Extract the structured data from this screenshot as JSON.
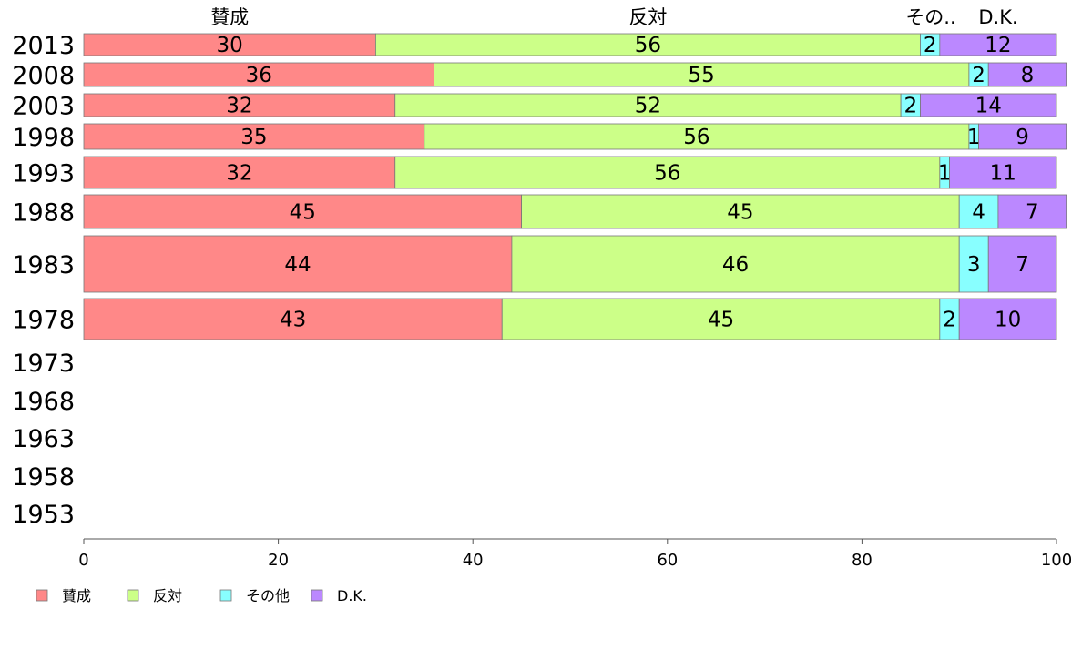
{
  "chart_data": {
    "type": "bar",
    "orientation": "horizontal",
    "stacked": true,
    "categories": [
      "2013",
      "2008",
      "2003",
      "1998",
      "1993",
      "1988",
      "1983",
      "1978",
      "1973",
      "1968",
      "1963",
      "1958",
      "1953"
    ],
    "top_labels": [
      "賛成",
      "反対",
      "その..",
      "D.K."
    ],
    "series": [
      {
        "name": "賛成",
        "color": "#ff8888",
        "values": [
          30,
          36,
          32,
          35,
          32,
          45,
          44,
          43,
          null,
          null,
          null,
          null,
          null
        ]
      },
      {
        "name": "反対",
        "color": "#ccff88",
        "values": [
          56,
          55,
          52,
          56,
          56,
          45,
          46,
          45,
          null,
          null,
          null,
          null,
          null
        ]
      },
      {
        "name": "その他",
        "color": "#88ffff",
        "values": [
          2,
          2,
          2,
          1,
          1,
          4,
          3,
          2,
          null,
          null,
          null,
          null,
          null
        ]
      },
      {
        "name": "D.K.",
        "color": "#bb88ff",
        "values": [
          12,
          8,
          14,
          9,
          11,
          7,
          7,
          10,
          null,
          null,
          null,
          null,
          null
        ]
      }
    ],
    "xlim": [
      0,
      100
    ],
    "xticks": [
      "0",
      "20",
      "40",
      "60",
      "80",
      "100"
    ],
    "legend_position": "bottom-left",
    "grid": false
  }
}
